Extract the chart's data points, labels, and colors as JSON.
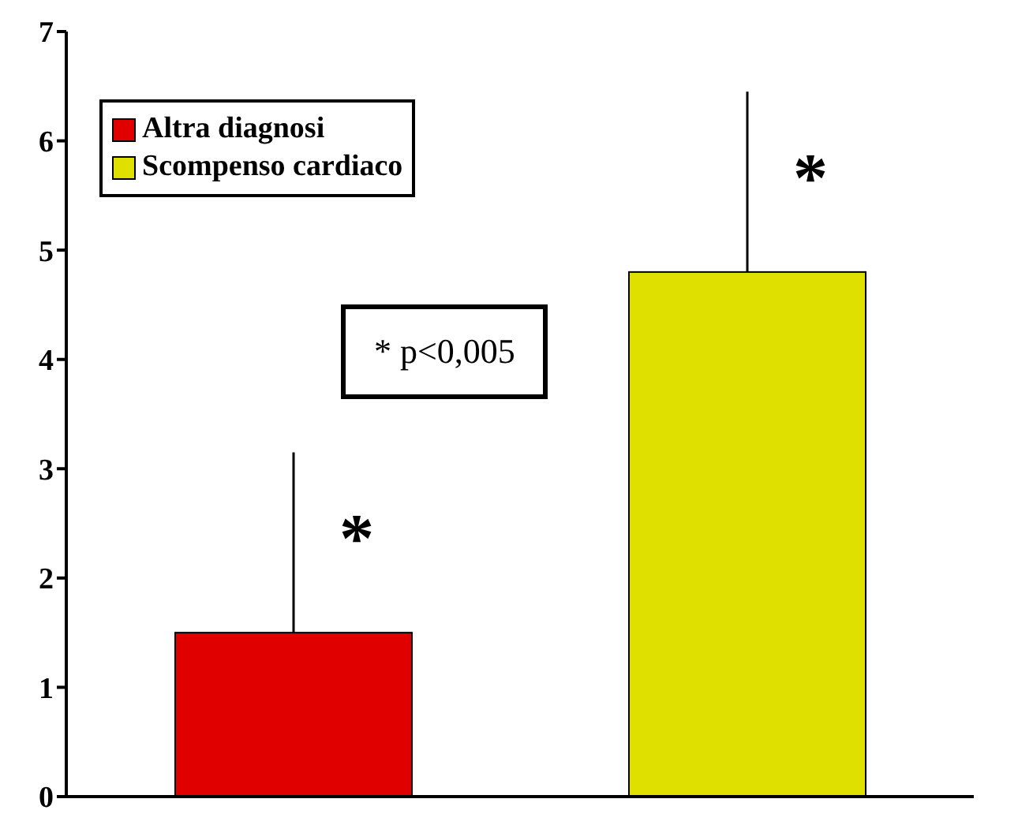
{
  "chart_data": {
    "type": "bar",
    "categories": [
      null,
      null
    ],
    "series": [
      {
        "name": "Altra diagnosi",
        "color": "#e00000",
        "values": [
          1.5,
          null
        ],
        "errors": [
          [
            1.5,
            3.15
          ],
          null
        ],
        "value_labels": [
          "*",
          null
        ]
      },
      {
        "name": "Scompenso cardiaco",
        "color": "#e0e000",
        "values": [
          null,
          4.8
        ],
        "errors": [
          null,
          [
            4.8,
            6.45
          ]
        ],
        "value_labels": [
          null,
          "*"
        ]
      }
    ],
    "ylim": [
      0,
      7
    ],
    "yticks": [
      0,
      1,
      2,
      3,
      4,
      5,
      6,
      7
    ],
    "legend": "top left",
    "annotations": [
      "* p<0,005"
    ]
  }
}
